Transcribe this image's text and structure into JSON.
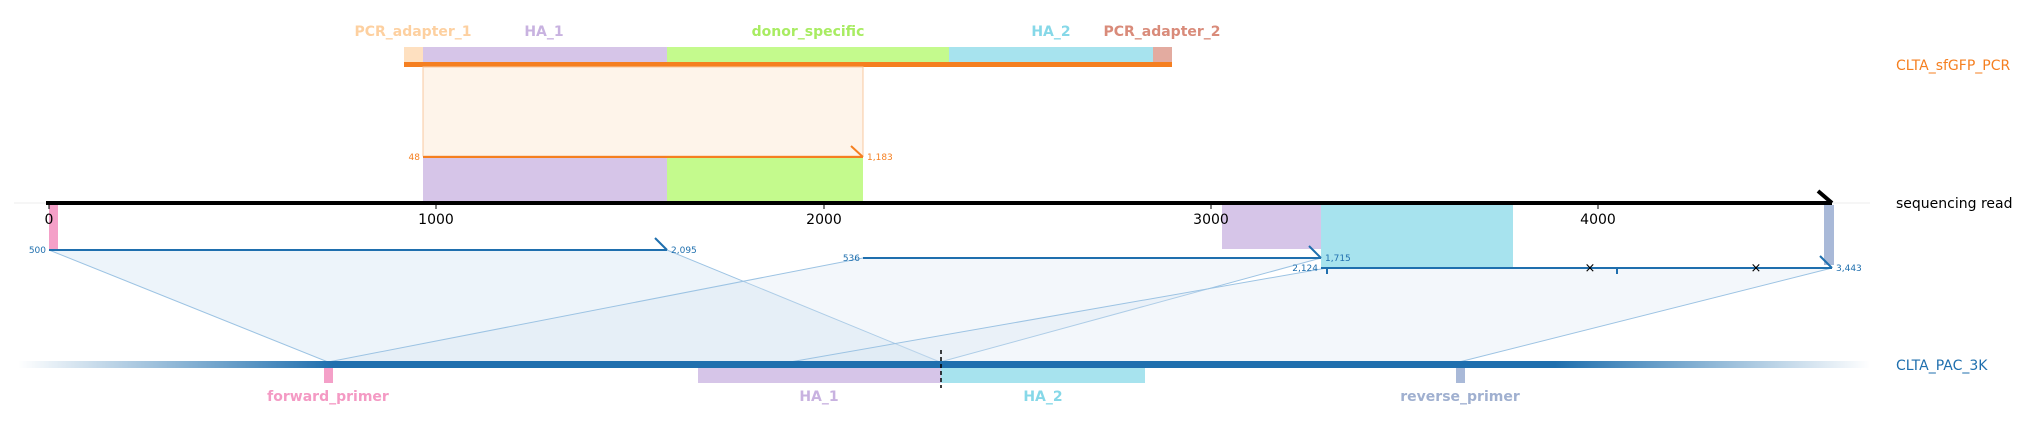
{
  "axis": {
    "ticks": [
      "0",
      "1000",
      "2000",
      "3000",
      "4000"
    ]
  },
  "rows": {
    "pcr": "CLTA_sfGFP_PCR",
    "read": "sequencing read",
    "ref": "CLTA_PAC_3K"
  },
  "pcr_features": {
    "adapter1": "PCR_adapter_1",
    "ha1": "HA_1",
    "donor": "donor_specific",
    "ha2": "HA_2",
    "adapter2": "PCR_adapter_2"
  },
  "ref_features": {
    "fwd": "forward_primer",
    "ha1": "HA_1",
    "ha2": "HA_2",
    "rev": "reverse_primer"
  },
  "alignments": {
    "pcr": {
      "start": "48",
      "end": "1,183"
    },
    "ref1": {
      "start": "500",
      "end": "2,095"
    },
    "ref2": {
      "start": "536",
      "end": "1,715",
      "mid": "2,124",
      "end2": "3,443"
    }
  },
  "colors": {
    "pcr": "#f57f20",
    "ref": "#1f6fae",
    "ha1": "#d6c5e8",
    "ha2": "#a7e3ee",
    "donor": "#c4fa8d",
    "adapter1": "#fee0c0",
    "adapter2": "#e3aba0",
    "fwd": "#f4a0c8",
    "rev": "#a9b9d8"
  }
}
